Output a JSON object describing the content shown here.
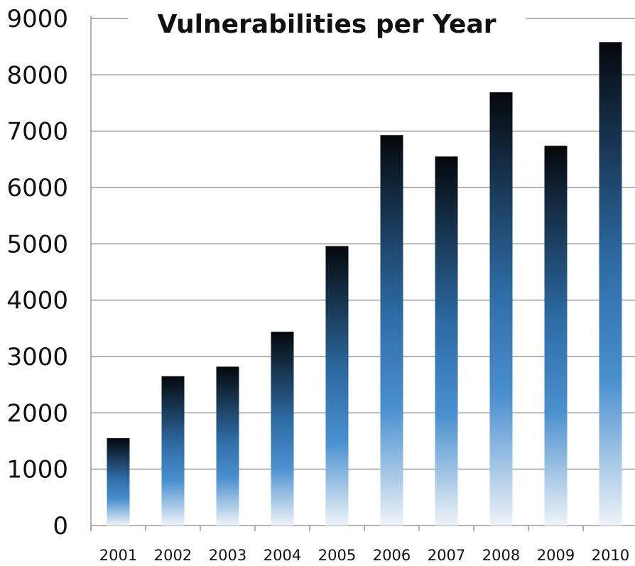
{
  "chart_data": {
    "type": "bar",
    "title": "Vulnerabilities per Year",
    "xlabel": "",
    "ylabel": "",
    "categories": [
      "2001",
      "2002",
      "2003",
      "2004",
      "2005",
      "2006",
      "2007",
      "2008",
      "2009",
      "2010"
    ],
    "values": [
      1550,
      2650,
      2820,
      3440,
      4960,
      6930,
      6550,
      7690,
      6740,
      8580
    ],
    "ylim": [
      0,
      9000
    ],
    "yticks": [
      "0",
      "1000",
      "2000",
      "3000",
      "4000",
      "5000",
      "6000",
      "7000",
      "8000",
      "9000"
    ],
    "grid": true,
    "legend": "none",
    "colors": {
      "bar_top": "#05080c",
      "bar_middle": "#4a90cf",
      "bar_bottom": "#eef3f8",
      "grid": "#9a9a9a",
      "axis": "#9a9a9a"
    }
  }
}
